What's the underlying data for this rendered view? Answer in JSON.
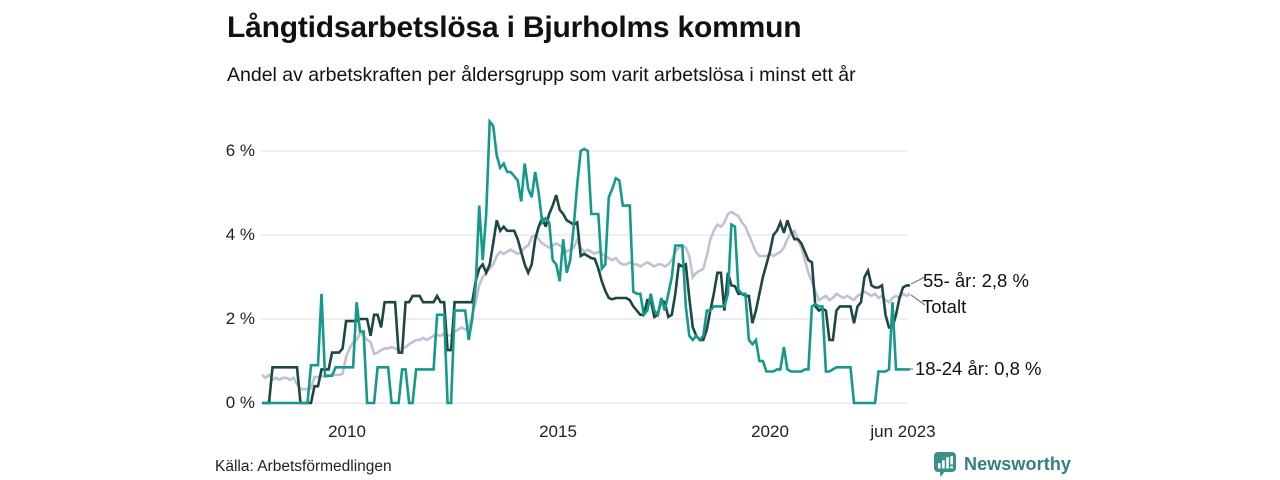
{
  "page": {
    "title": "Långtidsarbetslösa i Bjurholms kommun",
    "subtitle": "Andel av arbetskraften per åldersgrupp som varit arbetslösa i minst ett år",
    "source": "Källa: Arbetsförmedlingen",
    "brand": "Newsworthy"
  },
  "colors": {
    "series_18_24": "#14998a",
    "series_55": "#1d4742",
    "series_total": "#c3c0d3",
    "gridline": "#e5e4ea",
    "connector": "#777777",
    "brand_teal": "#34807b",
    "brand_icon": "#3a9189"
  },
  "annotations": [
    {
      "label": "55- år: 2,8 %"
    },
    {
      "label": "Totalt"
    },
    {
      "label": "18-24 år: 0,8 %"
    }
  ],
  "chart_data": {
    "type": "line",
    "title": "Långtidsarbetslösa i Bjurholms kommun",
    "subtitle": "Andel av arbetskraften per åldersgrupp som varit arbetslösa i minst ett år",
    "source": "Källa: Arbetsförmedlingen",
    "x_start": "2008-01",
    "x_end": "2023-06",
    "x_interval": "monthly",
    "ylim": [
      0,
      6.9
    ],
    "grid": "horizontal",
    "legend_position": "end-of-line-labels",
    "y_ticks": [
      {
        "label": "6 %",
        "value": 6
      },
      {
        "label": "4 %",
        "value": 4
      },
      {
        "label": "2 %",
        "value": 2
      },
      {
        "label": "0 %",
        "value": 0
      }
    ],
    "x_ticks": [
      {
        "label": "2010",
        "t": 2010.0
      },
      {
        "label": "2015",
        "t": 2015.0
      },
      {
        "label": "2020",
        "t": 2020.0
      },
      {
        "label": "jun 2023",
        "t": 2023.417
      }
    ],
    "series": [
      {
        "name": "18-24 år",
        "end_label": "18-24 år: 0,8 %",
        "end_value": 0.8,
        "color": "#14998a",
        "values": [
          0,
          0,
          0,
          0,
          0,
          0,
          0,
          0,
          0,
          0,
          0,
          0,
          0,
          0,
          0.9,
          0.9,
          0.9,
          2.6,
          0.65,
          0.65,
          0.65,
          0.85,
          0.85,
          0.85,
          0.85,
          0.85,
          0.85,
          2.4,
          1.7,
          1.7,
          0,
          0,
          0,
          0.85,
          0.85,
          0.85,
          0.85,
          0,
          0,
          0,
          0.8,
          0.8,
          0,
          0,
          0.8,
          0.8,
          0.8,
          0.8,
          0.8,
          0.8,
          2.1,
          2.1,
          2.1,
          0,
          0,
          2.2,
          2.2,
          2.2,
          2.2,
          1.5,
          2.0,
          2.8,
          4.7,
          3.4,
          4.5,
          6.7,
          6.6,
          5.9,
          5.6,
          5.7,
          5.5,
          5.5,
          5.4,
          5.3,
          4.8,
          5.7,
          5.1,
          4.9,
          5.5,
          5.0,
          4.3,
          4.4,
          4.3,
          3.4,
          3.3,
          2.9,
          3.9,
          3.1,
          3.4,
          4.2,
          5.2,
          6.0,
          6.05,
          6.0,
          4.5,
          4.5,
          4.5,
          3.2,
          3.3,
          4.9,
          5.1,
          5.35,
          5.3,
          4.7,
          4.7,
          4.7,
          2.65,
          2.6,
          2.6,
          2.1,
          2.2,
          2.6,
          2.2,
          2.1,
          2.5,
          2.2,
          2.6,
          3.0,
          3.75,
          3.75,
          3.75,
          2.3,
          1.6,
          1.5,
          1.6,
          1.5,
          1.6,
          2.2,
          2.2,
          2.3,
          2.3,
          2.3,
          2.3,
          2.6,
          4.25,
          4.2,
          2.7,
          2.6,
          2.6,
          1.5,
          1.4,
          1.5,
          1.0,
          1.0,
          0.75,
          0.75,
          0.75,
          0.8,
          0.8,
          1.33,
          0.8,
          0.75,
          0.75,
          0.75,
          0.75,
          0.8,
          0.8,
          2.3,
          2.35,
          2.3,
          2.3,
          0.75,
          0.75,
          0.8,
          0.85,
          0.85,
          0.85,
          0.85,
          0.85,
          0,
          0,
          0,
          0,
          0,
          0,
          0,
          0.75,
          0.75,
          0.75,
          0.8,
          2.4,
          0.8,
          0.8,
          0.8,
          0.8,
          0.8
        ]
      },
      {
        "name": "55- år",
        "end_label": "55- år: 2,8 %",
        "end_value": 2.8,
        "color": "#1d4742",
        "values": [
          0,
          0,
          0,
          0.85,
          0.85,
          0.85,
          0.85,
          0.85,
          0.85,
          0.85,
          0.85,
          0,
          0,
          0,
          0,
          0.4,
          0.4,
          0.8,
          0.8,
          0.8,
          1.2,
          1.2,
          1.2,
          1.3,
          1.95,
          1.95,
          1.95,
          1.95,
          2.0,
          2.0,
          2.0,
          1.6,
          2.1,
          2.1,
          1.8,
          2.4,
          2.4,
          2.4,
          2.4,
          1.2,
          1.2,
          2.4,
          2.4,
          2.55,
          2.55,
          2.55,
          2.4,
          2.4,
          2.4,
          2.4,
          2.55,
          2.4,
          2.4,
          1.26,
          1.26,
          2.4,
          2.4,
          2.4,
          2.4,
          2.4,
          2.4,
          2.9,
          3.2,
          3.3,
          3.1,
          3.3,
          3.8,
          4.35,
          4.1,
          4.2,
          4.1,
          4.1,
          4.1,
          3.9,
          3.6,
          3.3,
          3.1,
          3.3,
          3.9,
          4.2,
          4.4,
          4.2,
          4.5,
          4.7,
          4.95,
          4.6,
          4.5,
          4.35,
          4.3,
          4.25,
          4.3,
          3.5,
          3.55,
          3.5,
          3.45,
          3.43,
          3.2,
          2.9,
          2.67,
          2.5,
          2.47,
          2.5,
          2.5,
          2.5,
          2.5,
          2.45,
          2.3,
          2.2,
          2.1,
          2.1,
          2.45,
          2.45,
          2.05,
          2.1,
          2.45,
          2.4,
          2.05,
          2.1,
          2.6,
          3.3,
          3.25,
          3.3,
          2.5,
          1.8,
          1.6,
          1.5,
          1.5,
          1.75,
          2.2,
          2.6,
          3.1,
          3.1,
          2.2,
          3.1,
          2.8,
          2.78,
          2.6,
          2.6,
          2.55,
          2.55,
          1.9,
          2.2,
          2.6,
          3.0,
          3.3,
          3.6,
          4.0,
          4.1,
          4.3,
          4.05,
          4.35,
          4.1,
          3.9,
          3.9,
          3.8,
          3.6,
          3.4,
          3.35,
          2.3,
          2.2,
          2.25,
          2.2,
          1.5,
          1.5,
          2.2,
          2.3,
          2.3,
          2.3,
          2.3,
          1.9,
          2.3,
          2.4,
          3.0,
          3.15,
          2.8,
          2.75,
          2.75,
          2.8,
          2.1,
          1.8,
          1.8,
          2.1,
          2.5,
          2.75,
          2.8,
          2.8
        ]
      },
      {
        "name": "Totalt",
        "end_label": "Totalt",
        "end_value": 2.6,
        "color": "#c3c0d3",
        "values": [
          0.67,
          0.6,
          0.67,
          0.55,
          0.6,
          0.55,
          0.6,
          0.6,
          0.55,
          0.6,
          0.45,
          0.33,
          0.33,
          0.33,
          0.35,
          0.62,
          0.62,
          0.64,
          0.62,
          0.64,
          0.67,
          0.67,
          0.67,
          0.7,
          1.1,
          1.3,
          1.45,
          1.5,
          1.67,
          1.6,
          1.5,
          1.45,
          1.17,
          1.2,
          1.26,
          1.3,
          1.3,
          1.33,
          1.3,
          1.26,
          1.3,
          1.33,
          1.4,
          1.45,
          1.5,
          1.5,
          1.55,
          1.5,
          1.55,
          1.6,
          1.62,
          1.6,
          1.65,
          1.6,
          1.62,
          1.7,
          1.75,
          1.8,
          1.75,
          1.8,
          2.1,
          2.4,
          2.8,
          3.0,
          3.1,
          3.2,
          3.3,
          3.5,
          3.6,
          3.55,
          3.6,
          3.65,
          3.6,
          3.55,
          3.6,
          3.7,
          3.75,
          3.95,
          4.0,
          3.9,
          3.8,
          3.75,
          3.7,
          3.75,
          3.8,
          3.75,
          3.7,
          3.6,
          3.65,
          3.7,
          3.88,
          3.7,
          3.6,
          3.65,
          3.6,
          3.55,
          3.6,
          3.55,
          3.5,
          3.45,
          3.4,
          3.45,
          3.35,
          3.3,
          3.3,
          3.35,
          3.3,
          3.3,
          3.25,
          3.3,
          3.35,
          3.3,
          3.25,
          3.3,
          3.3,
          3.25,
          3.3,
          3.4,
          3.6,
          3.7,
          3.75,
          3.7,
          3.5,
          3.0,
          3.1,
          3.15,
          3.2,
          3.5,
          3.9,
          4.1,
          4.25,
          4.2,
          4.3,
          4.5,
          4.55,
          4.5,
          4.45,
          4.3,
          4.2,
          4.0,
          3.8,
          3.6,
          3.5,
          3.5,
          3.5,
          3.55,
          3.5,
          3.55,
          3.6,
          3.7,
          3.9,
          4.05,
          4.1,
          3.9,
          3.7,
          3.4,
          3.1,
          2.9,
          2.65,
          2.45,
          2.5,
          2.55,
          2.45,
          2.5,
          2.6,
          2.55,
          2.5,
          2.55,
          2.5,
          2.45,
          2.55,
          2.6,
          2.65,
          2.6,
          2.55,
          2.6,
          2.5,
          2.55,
          2.45,
          2.4,
          2.5,
          2.55,
          2.5,
          2.6,
          2.55,
          2.6
        ]
      }
    ]
  }
}
